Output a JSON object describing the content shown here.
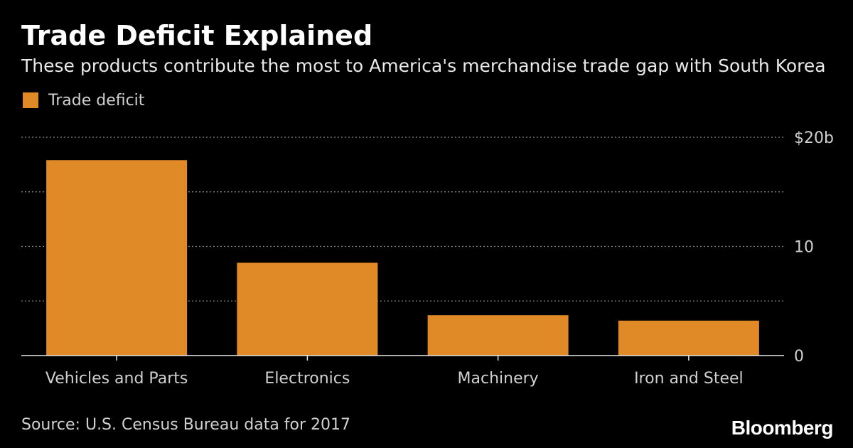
{
  "header": {
    "title": "Trade Deficit Explained",
    "subtitle": "These products contribute the most to America's merchandise trade gap with South Korea"
  },
  "footer": {
    "source": "Source: U.S. Census Bureau data for 2017",
    "brand": "Bloomberg"
  },
  "colors": {
    "background": "#000000",
    "bar": "#e08a27",
    "gridline": "#8a8a8a",
    "axis": "#e8e8e8",
    "text": "#ffffff",
    "muted_text": "#d0d0d0"
  },
  "chart_data": {
    "type": "bar",
    "title": "Trade Deficit Explained",
    "subtitle": "These products contribute the most to America's merchandise trade gap with South Korea",
    "categories": [
      "Vehicles and Parts",
      "Electronics",
      "Machinery",
      "Iron and Steel"
    ],
    "series": [
      {
        "name": "Trade deficit",
        "values": [
          17.9,
          8.5,
          3.7,
          3.2
        ]
      }
    ],
    "unit": "billions of USD",
    "ylim": [
      0,
      20
    ],
    "gridlines": [
      5,
      10,
      15,
      20
    ],
    "ytick_values": [
      0,
      10,
      20
    ],
    "ytick_labels": [
      "0",
      "10",
      "$20b"
    ],
    "yaxis_side": "right",
    "legend": "top-left",
    "xlabel": "",
    "ylabel": ""
  }
}
